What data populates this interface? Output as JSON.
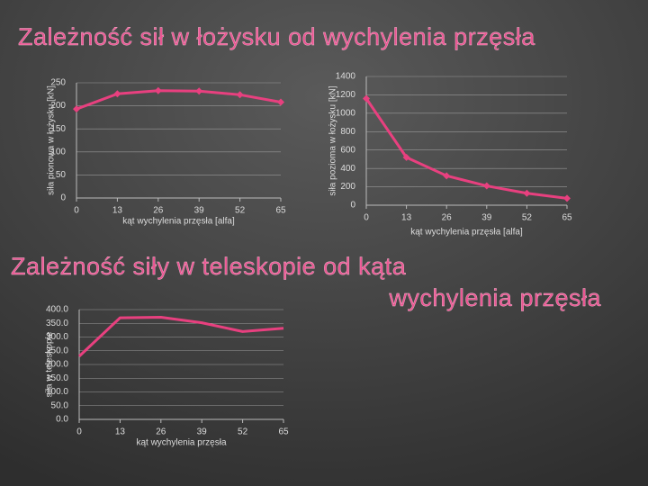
{
  "headings": [
    "Zależność sił w łożysku od wychylenia przęsła",
    "Zależność siły w teleskopie od kąta",
    "wychylenia przęsła"
  ],
  "chart_data": [
    {
      "type": "line",
      "xlabel": "kąt wychylenia przęsła [alfa]",
      "ylabel": "siła pionowa w łożysku [kN]",
      "x": [
        0,
        13,
        26,
        39,
        52,
        65
      ],
      "series": [
        {
          "color": "#e8407f",
          "values": [
            193,
            226,
            233,
            232,
            224,
            208
          ]
        }
      ],
      "xlim": [
        0,
        65
      ],
      "xticks": [
        0,
        13,
        26,
        39,
        52,
        65
      ],
      "ylim": [
        0,
        250
      ],
      "yticks": [
        0,
        50,
        100,
        150,
        200,
        250
      ],
      "grid": true,
      "markers": true
    },
    {
      "type": "line",
      "xlabel": "kąt wychylenia przęsła [alfa]",
      "ylabel": "siła pozioma w łożysku [kN]",
      "x": [
        0,
        13,
        26,
        39,
        52,
        65
      ],
      "series": [
        {
          "color": "#e8407f",
          "values": [
            1160,
            520,
            320,
            210,
            130,
            75
          ]
        }
      ],
      "xlim": [
        0,
        65
      ],
      "xticks": [
        0,
        13,
        26,
        39,
        52,
        65
      ],
      "ylim": [
        0,
        1400
      ],
      "yticks": [
        0,
        200,
        400,
        600,
        800,
        1000,
        1200,
        1400
      ],
      "grid": true,
      "markers": true
    },
    {
      "type": "line",
      "xlabel": "kąt wychylenia przęsła",
      "ylabel": "siła w teleskopie",
      "x": [
        0,
        13,
        26,
        39,
        52,
        65
      ],
      "series": [
        {
          "color": "#e8407f",
          "values": [
            230,
            370,
            372,
            352,
            320,
            332
          ]
        }
      ],
      "xlim": [
        0,
        65
      ],
      "xticks": [
        0,
        13,
        26,
        39,
        52,
        65
      ],
      "ylim": [
        0,
        400
      ],
      "yticks": [
        {
          "value": 0,
          "label": "0.0"
        },
        {
          "value": 50,
          "label": "50.0"
        },
        {
          "value": 100,
          "label": "100.0"
        },
        {
          "value": 150,
          "label": "150.0"
        },
        {
          "value": 200,
          "label": "200.0"
        },
        {
          "value": 250,
          "label": "250.0"
        },
        {
          "value": 300,
          "label": "300.0"
        },
        {
          "value": 350,
          "label": "350.0"
        },
        {
          "value": 400,
          "label": "400.0"
        }
      ],
      "grid": true,
      "markers": false
    }
  ]
}
